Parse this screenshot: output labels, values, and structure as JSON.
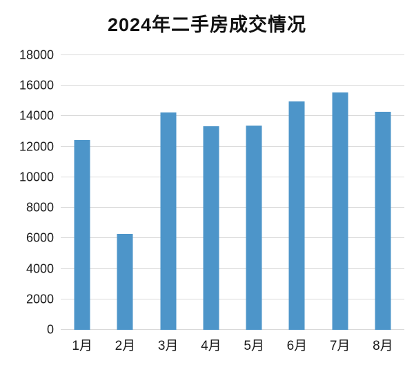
{
  "chart_data": {
    "type": "bar",
    "title": "2024年二手房成交情况",
    "categories": [
      "1月",
      "2月",
      "3月",
      "4月",
      "5月",
      "6月",
      "7月",
      "8月"
    ],
    "values": [
      12450,
      6300,
      14250,
      13350,
      13400,
      14950,
      15550,
      14300
    ],
    "xlabel": "",
    "ylabel": "",
    "ylim": [
      0,
      18000
    ],
    "ytick_step": 2000,
    "ytick_labels": [
      "0",
      "2000",
      "4000",
      "6000",
      "8000",
      "10000",
      "12000",
      "14000",
      "16000",
      "18000"
    ],
    "grid": "horizontal",
    "legend": "none",
    "bar_color": "#4d95c9",
    "gridline_color": "#d9d9d9",
    "text_color": "#1a1a1a"
  }
}
